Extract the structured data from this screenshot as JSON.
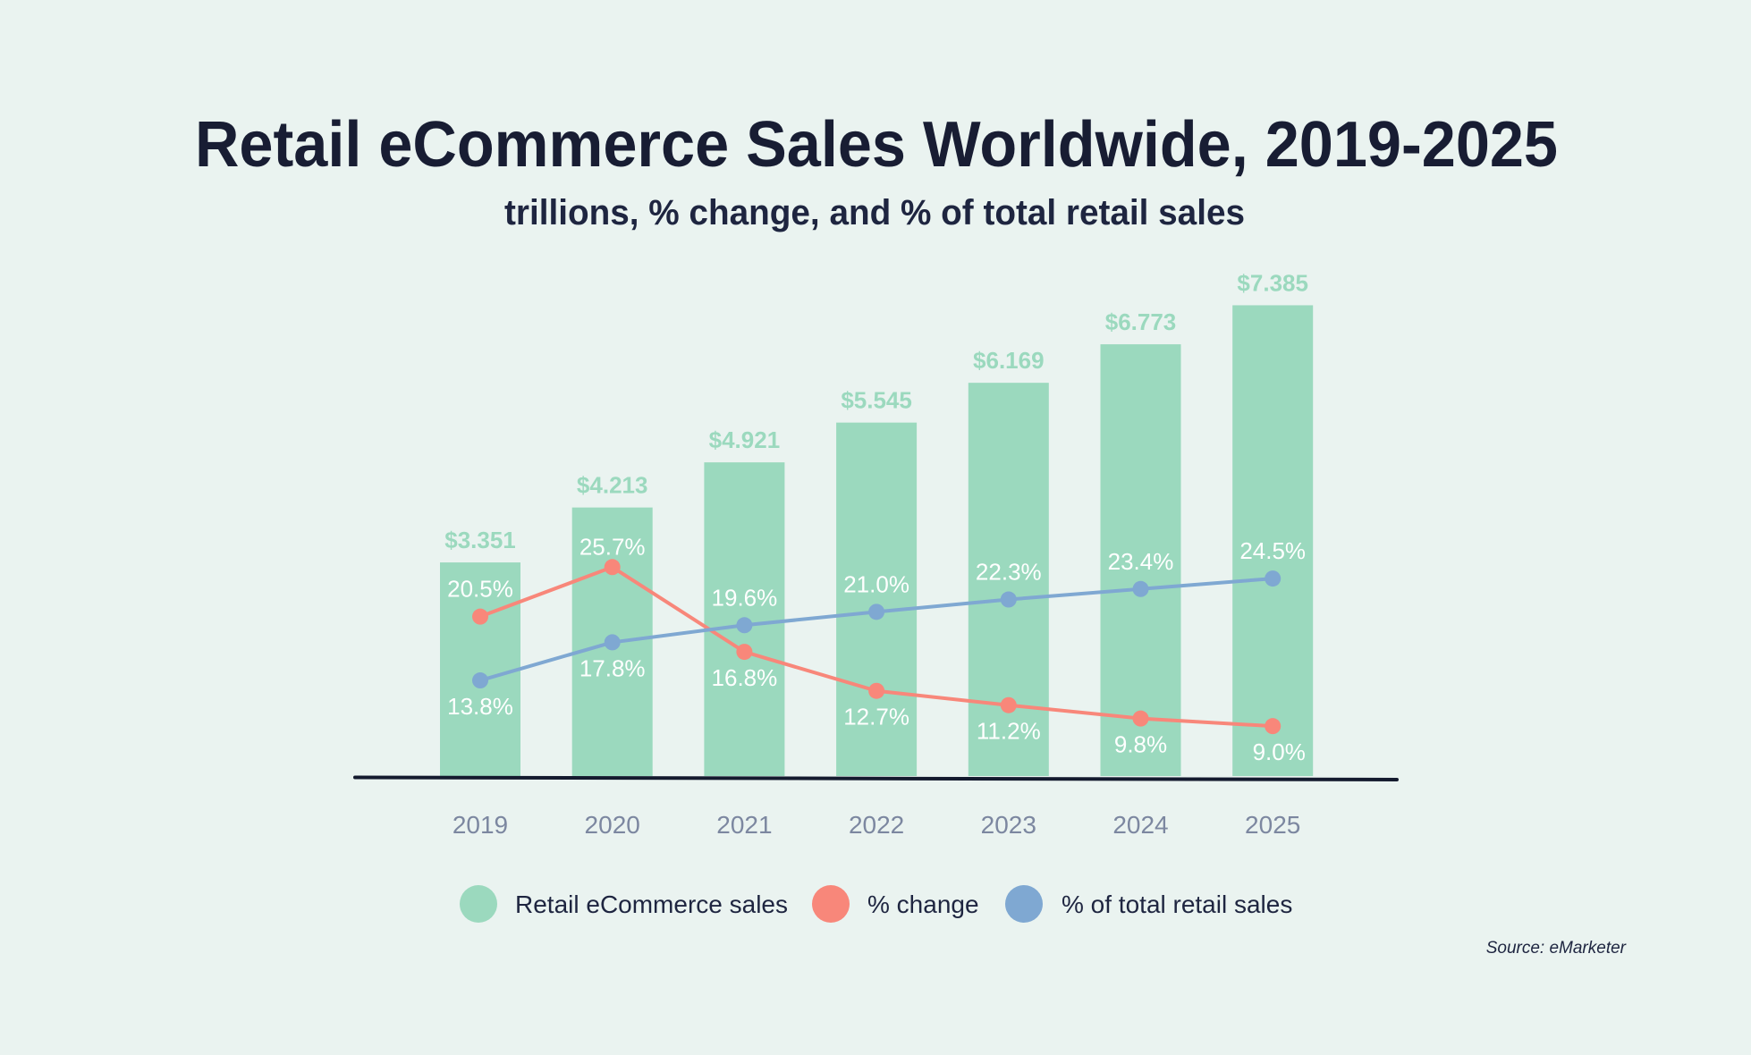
{
  "chart_data": {
    "type": "bar",
    "title": "Retail eCommerce Sales Worldwide, 2019-2025",
    "subtitle": "trillions, % change, and % of total retail sales",
    "xlabel": "",
    "ylabel": "",
    "grid": false,
    "categories": [
      "2019",
      "2020",
      "2021",
      "2022",
      "2023",
      "2024",
      "2025"
    ],
    "series": [
      {
        "name": "Retail eCommerce sales",
        "type": "bar",
        "color": "#9BD9BE",
        "values": [
          3.351,
          4.213,
          4.921,
          5.545,
          6.169,
          6.773,
          7.385
        ],
        "labels": [
          "$3.351",
          "$4.213",
          "$4.921",
          "$5.545",
          "$6.169",
          "$6.773",
          "$7.385"
        ]
      },
      {
        "name": "% change",
        "type": "line",
        "color": "#F8877A",
        "values": [
          20.5,
          25.7,
          16.8,
          12.7,
          11.2,
          9.8,
          9.0
        ],
        "labels": [
          "20.5%",
          "25.7%",
          "16.8%",
          "12.7%",
          "11.2%",
          "9.8%",
          "9.0%"
        ]
      },
      {
        "name": "% of total retail sales",
        "type": "line",
        "color": "#7FA8D2",
        "values": [
          13.8,
          17.8,
          19.6,
          21.0,
          22.3,
          23.4,
          24.5
        ],
        "labels": [
          "13.8%",
          "17.8%",
          "19.6%",
          "21.0%",
          "22.3%",
          "23.4%",
          "24.5%"
        ]
      }
    ],
    "ylim": [
      0,
      7.385
    ],
    "legend": {
      "position": "bottom-center",
      "entries": [
        "Retail eCommerce sales",
        "% change",
        "% of total retail sales"
      ]
    },
    "annotations": [
      "Source: eMarketer"
    ]
  },
  "colors": {
    "background": "#EAF3F0",
    "title": "#181D33",
    "axis_line": "#141A2E",
    "tick_text": "#7C87A0"
  },
  "source": "Source: eMarketer"
}
